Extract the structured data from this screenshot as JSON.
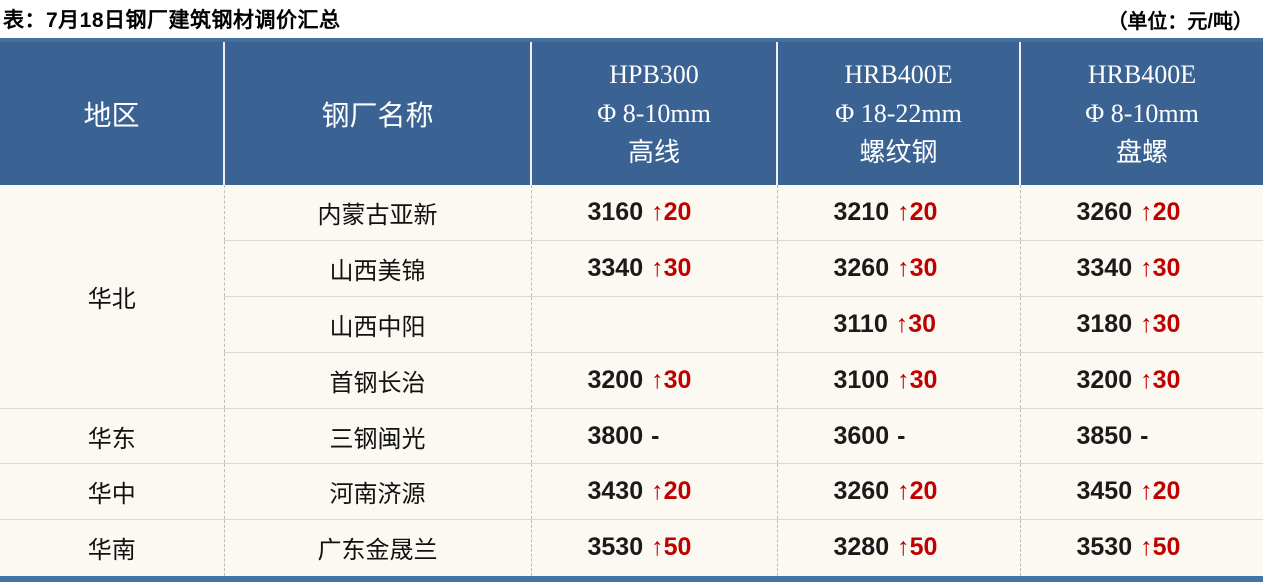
{
  "page": {
    "title": "表：7月18日钢厂建筑钢材调价汇总",
    "unit_label": "（单位：元/吨）"
  },
  "colors": {
    "header_fill": "#3a6292",
    "header_text": "#ffffff",
    "accent_bar": "#4273a9",
    "price_text": "#1a1a1a",
    "change_up": "#c00000",
    "body_fill": "#fbf9f2"
  },
  "table": {
    "headers": {
      "region": "地区",
      "mill": "钢厂名称",
      "products": [
        {
          "grade": "HPB300",
          "spec": "Φ 8-10mm",
          "type": "高线"
        },
        {
          "grade": "HRB400E",
          "spec": "Φ 18-22mm",
          "type": "螺纹钢"
        },
        {
          "grade": "HRB400E",
          "spec": "Φ 8-10mm",
          "type": "盘螺"
        }
      ]
    },
    "rows": [
      {
        "region_cell": {
          "name": "华北",
          "rowspan": 4
        },
        "mill": "内蒙古亚新",
        "values": [
          {
            "price": "3160",
            "change": "↑20",
            "up": true
          },
          {
            "price": "3210",
            "change": "↑20",
            "up": true
          },
          {
            "price": "3260",
            "change": "↑20",
            "up": true
          }
        ]
      },
      {
        "mill": "山西美锦",
        "values": [
          {
            "price": "3340",
            "change": "↑30",
            "up": true
          },
          {
            "price": "3260",
            "change": "↑30",
            "up": true
          },
          {
            "price": "3340",
            "change": "↑30",
            "up": true
          }
        ]
      },
      {
        "mill": "山西中阳",
        "values": [
          {
            "price": "",
            "change": "",
            "up": false
          },
          {
            "price": "3110",
            "change": "↑30",
            "up": true
          },
          {
            "price": "3180",
            "change": "↑30",
            "up": true
          }
        ]
      },
      {
        "mill": "首钢长治",
        "values": [
          {
            "price": "3200",
            "change": "↑30",
            "up": true
          },
          {
            "price": "3100",
            "change": "↑30",
            "up": true
          },
          {
            "price": "3200",
            "change": "↑30",
            "up": true
          }
        ]
      },
      {
        "region_cell": {
          "name": "华东",
          "rowspan": 1
        },
        "mill": "三钢闽光",
        "values": [
          {
            "price": "3800",
            "change": "-",
            "up": false
          },
          {
            "price": "3600",
            "change": "-",
            "up": false
          },
          {
            "price": "3850",
            "change": "-",
            "up": false
          }
        ]
      },
      {
        "region_cell": {
          "name": "华中",
          "rowspan": 1
        },
        "mill": "河南济源",
        "values": [
          {
            "price": "3430",
            "change": "↑20",
            "up": true
          },
          {
            "price": "3260",
            "change": "↑20",
            "up": true
          },
          {
            "price": "3450",
            "change": "↑20",
            "up": true
          }
        ]
      },
      {
        "region_cell": {
          "name": "华南",
          "rowspan": 1
        },
        "mill": "广东金晟兰",
        "values": [
          {
            "price": "3530",
            "change": "↑50",
            "up": true
          },
          {
            "price": "3280",
            "change": "↑50",
            "up": true
          },
          {
            "price": "3530",
            "change": "↑50",
            "up": true
          }
        ]
      }
    ]
  },
  "chart_data": {
    "type": "table",
    "title": "表：7月18日钢厂建筑钢材调价汇总",
    "unit": "元/吨",
    "columns": [
      "地区",
      "钢厂名称",
      "HPB300 Φ8-10mm 高线",
      "HRB400E Φ18-22mm 螺纹钢",
      "HRB400E Φ8-10mm 盘螺"
    ],
    "rows": [
      [
        "华北",
        "内蒙古亚新",
        "3160 ↑20",
        "3210 ↑20",
        "3260 ↑20"
      ],
      [
        "华北",
        "山西美锦",
        "3340 ↑30",
        "3260 ↑30",
        "3340 ↑30"
      ],
      [
        "华北",
        "山西中阳",
        "",
        "3110 ↑30",
        "3180 ↑30"
      ],
      [
        "华北",
        "首钢长治",
        "3200 ↑30",
        "3100 ↑30",
        "3200 ↑30"
      ],
      [
        "华东",
        "三钢闽光",
        "3800 -",
        "3600 -",
        "3850 -"
      ],
      [
        "华中",
        "河南济源",
        "3430 ↑20",
        "3260 ↑20",
        "3450 ↑20"
      ],
      [
        "华南",
        "广东金晟兰",
        "3530 ↑50",
        "3280 ↑50",
        "3530 ↑50"
      ]
    ]
  }
}
